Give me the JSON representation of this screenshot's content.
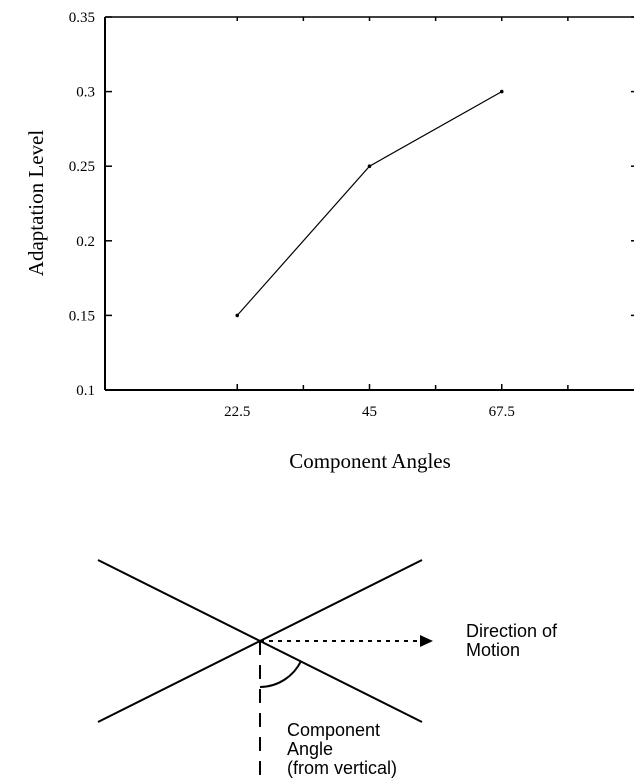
{
  "chart_data": {
    "type": "line",
    "xlabel": "Component Angles",
    "ylabel": "Adaptation Level",
    "x": [
      22.5,
      45,
      67.5
    ],
    "series": [
      {
        "values": [
          0.15,
          0.25,
          0.3
        ]
      }
    ],
    "xlim": [
      0,
      90
    ],
    "ylim": [
      0.1,
      0.35
    ],
    "x_ticks": [
      22.5,
      45,
      67.5
    ],
    "x_tick_labels": [
      "22.5",
      "45",
      "67.5"
    ],
    "y_ticks": [
      0.1,
      0.15,
      0.2,
      0.25,
      0.3,
      0.35
    ],
    "y_tick_labels": [
      "0.1",
      "0.15",
      "0.2",
      "0.25",
      "0.3",
      "0.35"
    ],
    "grid": false,
    "colors": {
      "line": "#000000",
      "axis": "#000000"
    }
  },
  "diagram": {
    "direction_label": [
      "Direction of",
      "Motion"
    ],
    "angle_label": [
      "Component",
      "Angle",
      "(from vertical)"
    ]
  }
}
